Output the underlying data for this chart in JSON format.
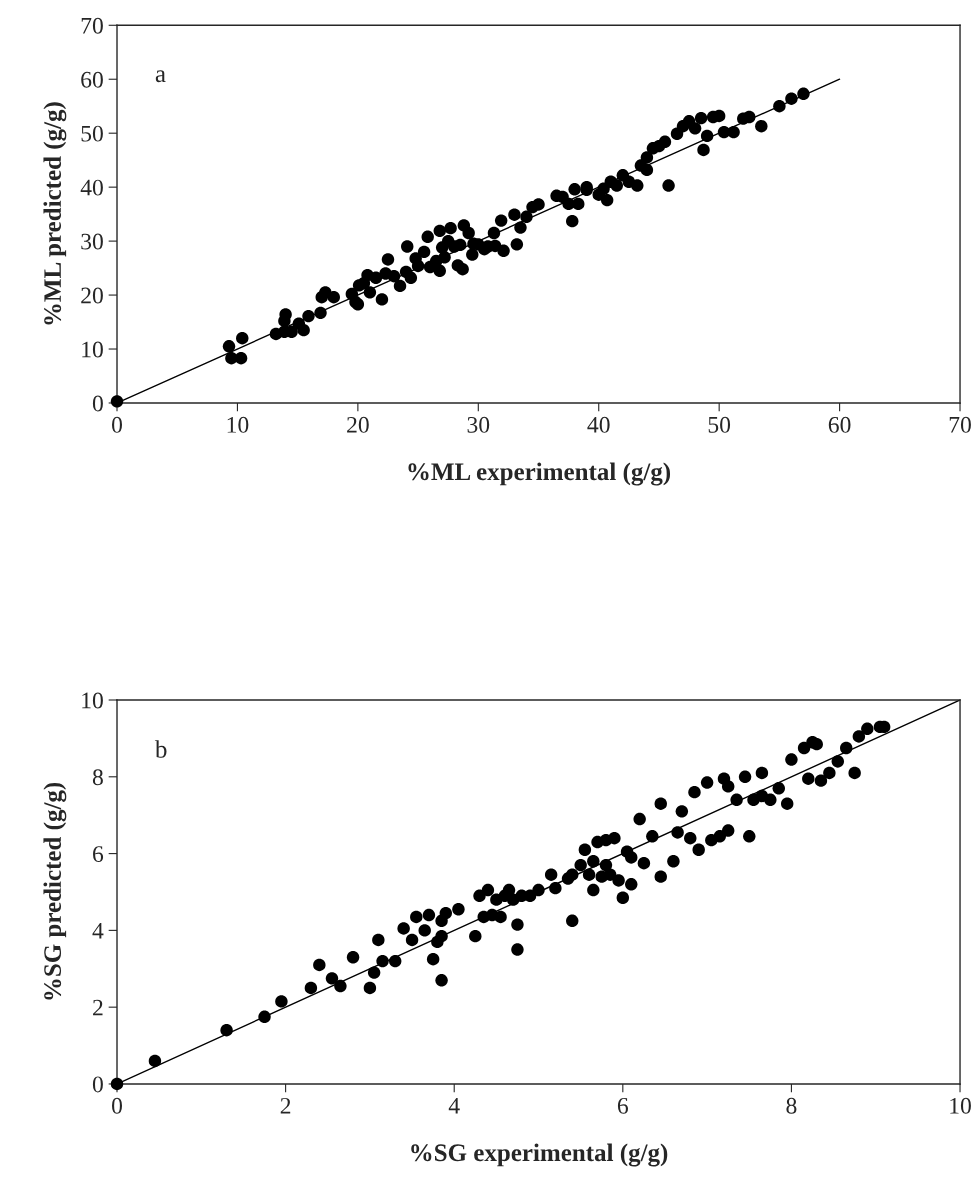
{
  "chart_data": [
    {
      "type": "scatter",
      "xlabel": "%ML experimental (g/g)",
      "ylabel": "%ML predicted (g/g)",
      "annotations": [
        "a"
      ],
      "xlim": [
        0,
        70
      ],
      "ylim": [
        0,
        70
      ],
      "xticks": [
        0,
        10,
        20,
        30,
        40,
        50,
        60,
        70
      ],
      "yticks": [
        0,
        10,
        20,
        30,
        40,
        50,
        60,
        70
      ],
      "grid": false,
      "legend": false,
      "series": [
        {
          "marker": "circle",
          "color": "#000000",
          "x": [
            0,
            9.3,
            9.5,
            10.3,
            10.4,
            13.2,
            13.9,
            13.9,
            14,
            14.5,
            15.1,
            15.5,
            15.9,
            16.9,
            17,
            17.3,
            18,
            19.5,
            19.8,
            20,
            20.1,
            20.5,
            20.8,
            21,
            21.5,
            22,
            22.3,
            22.5,
            23,
            23.5,
            24,
            24.1,
            24.4,
            24.8,
            25,
            25.5,
            25.8,
            26,
            26.5,
            26.8,
            26.8,
            27,
            27.2,
            27.5,
            27.7,
            28,
            28.3,
            28.5,
            28.7,
            28.8,
            29.2,
            29.5,
            29.6,
            30,
            30.5,
            30.8,
            31.3,
            31.4,
            31.9,
            32.1,
            33,
            33.2,
            33.5,
            34,
            34.5,
            35,
            36.5,
            37,
            37.5,
            37.8,
            38,
            38.3,
            39,
            39,
            40,
            40.4,
            40.7,
            41,
            41.5,
            42,
            42.5,
            43.2,
            43.5,
            44,
            44,
            44.5,
            45,
            45.5,
            45.8,
            46.5,
            47,
            47.5,
            48,
            48.5,
            48.7,
            49,
            49.5,
            50,
            50.4,
            51.2,
            52,
            52.5,
            53.5,
            55,
            56,
            57
          ],
          "values": [
            0.3,
            10.5,
            8.3,
            8.3,
            12,
            12.8,
            13.2,
            15.2,
            16.4,
            13.2,
            14.7,
            13.5,
            16.1,
            16.7,
            19.6,
            20.5,
            19.6,
            20.2,
            18.7,
            18.3,
            21.8,
            22.2,
            23.7,
            20.5,
            23.2,
            19.2,
            24,
            26.6,
            23.5,
            21.7,
            24.3,
            29,
            23.2,
            26.8,
            25.4,
            28,
            30.8,
            25.2,
            26.3,
            31.9,
            24.5,
            28.8,
            27,
            30,
            32.4,
            29,
            25.5,
            29.3,
            24.8,
            32.9,
            31.5,
            27.5,
            29.5,
            29.4,
            28.5,
            29,
            31.5,
            29.1,
            33.8,
            28.2,
            34.9,
            29.4,
            32.5,
            34.5,
            36.3,
            36.8,
            38.4,
            38.2,
            36.9,
            33.7,
            39.6,
            36.9,
            39.5,
            40,
            38.6,
            39.7,
            37.6,
            41,
            40.3,
            42.2,
            41,
            40.3,
            44,
            43.2,
            45.5,
            47.2,
            47.6,
            48.4,
            40.3,
            49.9,
            51.3,
            52.2,
            50.9,
            52.8,
            46.9,
            49.5,
            53,
            53.2,
            50.2,
            50.2,
            52.7,
            53,
            51.3,
            55,
            56.4,
            57.3
          ]
        },
        {
          "type": "line",
          "color": "#000000",
          "x": [
            0,
            60
          ],
          "values": [
            0,
            60
          ]
        }
      ]
    },
    {
      "type": "scatter",
      "xlabel": "%SG experimental (g/g)",
      "ylabel": "%SG predicted (g/g)",
      "annotations": [
        "b"
      ],
      "xlim": [
        0,
        10
      ],
      "ylim": [
        0,
        10
      ],
      "xticks": [
        0,
        2,
        4,
        6,
        8,
        10
      ],
      "yticks": [
        0,
        2,
        4,
        6,
        8,
        10
      ],
      "grid": false,
      "legend": false,
      "series": [
        {
          "marker": "circle",
          "color": "#000000",
          "x": [
            0,
            0.45,
            1.3,
            1.75,
            1.95,
            2.3,
            2.4,
            2.55,
            2.65,
            2.8,
            3.0,
            3.05,
            3.1,
            3.15,
            3.3,
            3.4,
            3.5,
            3.55,
            3.65,
            3.7,
            3.75,
            3.8,
            3.85,
            3.85,
            3.85,
            3.9,
            4.05,
            4.25,
            4.3,
            4.35,
            4.4,
            4.45,
            4.5,
            4.55,
            4.6,
            4.65,
            4.7,
            4.75,
            4.75,
            4.8,
            4.9,
            5.0,
            5.15,
            5.2,
            5.35,
            5.4,
            5.4,
            5.5,
            5.55,
            5.6,
            5.65,
            5.65,
            5.7,
            5.75,
            5.8,
            5.8,
            5.85,
            5.9,
            5.95,
            6.0,
            6.05,
            6.1,
            6.1,
            6.2,
            6.25,
            6.35,
            6.45,
            6.45,
            6.6,
            6.65,
            6.7,
            6.8,
            6.85,
            6.9,
            7.0,
            7.05,
            7.15,
            7.2,
            7.25,
            7.25,
            7.35,
            7.45,
            7.5,
            7.55,
            7.65,
            7.65,
            7.75,
            7.85,
            7.95,
            8.0,
            8.15,
            8.25,
            8.2,
            8.35,
            8.3,
            8.45,
            8.55,
            8.65,
            8.75,
            8.8,
            8.9,
            9.05,
            9.1
          ],
          "values": [
            0,
            0.6,
            1.4,
            1.75,
            2.15,
            2.5,
            3.1,
            2.75,
            2.55,
            3.3,
            2.5,
            2.9,
            3.75,
            3.2,
            3.2,
            4.05,
            3.75,
            4.35,
            4.0,
            4.4,
            3.25,
            3.7,
            4.25,
            3.85,
            2.7,
            4.45,
            4.55,
            3.85,
            4.9,
            4.35,
            5.05,
            4.4,
            4.8,
            4.35,
            4.9,
            5.05,
            4.8,
            4.15,
            3.5,
            4.9,
            4.9,
            5.05,
            5.45,
            5.1,
            5.35,
            5.45,
            4.25,
            5.7,
            6.1,
            5.45,
            5.8,
            5.05,
            6.3,
            5.4,
            5.7,
            6.35,
            5.45,
            6.4,
            5.3,
            4.85,
            6.05,
            5.9,
            5.2,
            6.9,
            5.75,
            6.45,
            7.3,
            5.4,
            5.8,
            6.55,
            7.1,
            6.4,
            7.6,
            6.1,
            7.85,
            6.35,
            6.45,
            7.95,
            7.75,
            6.6,
            7.4,
            8.0,
            6.45,
            7.4,
            7.5,
            8.1,
            7.4,
            7.7,
            7.3,
            8.45,
            8.75,
            8.9,
            7.95,
            7.9,
            8.85,
            8.1,
            8.4,
            8.75,
            8.1,
            9.05,
            9.25,
            9.3,
            9.3
          ]
        },
        {
          "type": "line",
          "color": "#000000",
          "x": [
            0,
            10
          ],
          "values": [
            0,
            10
          ]
        }
      ]
    }
  ]
}
